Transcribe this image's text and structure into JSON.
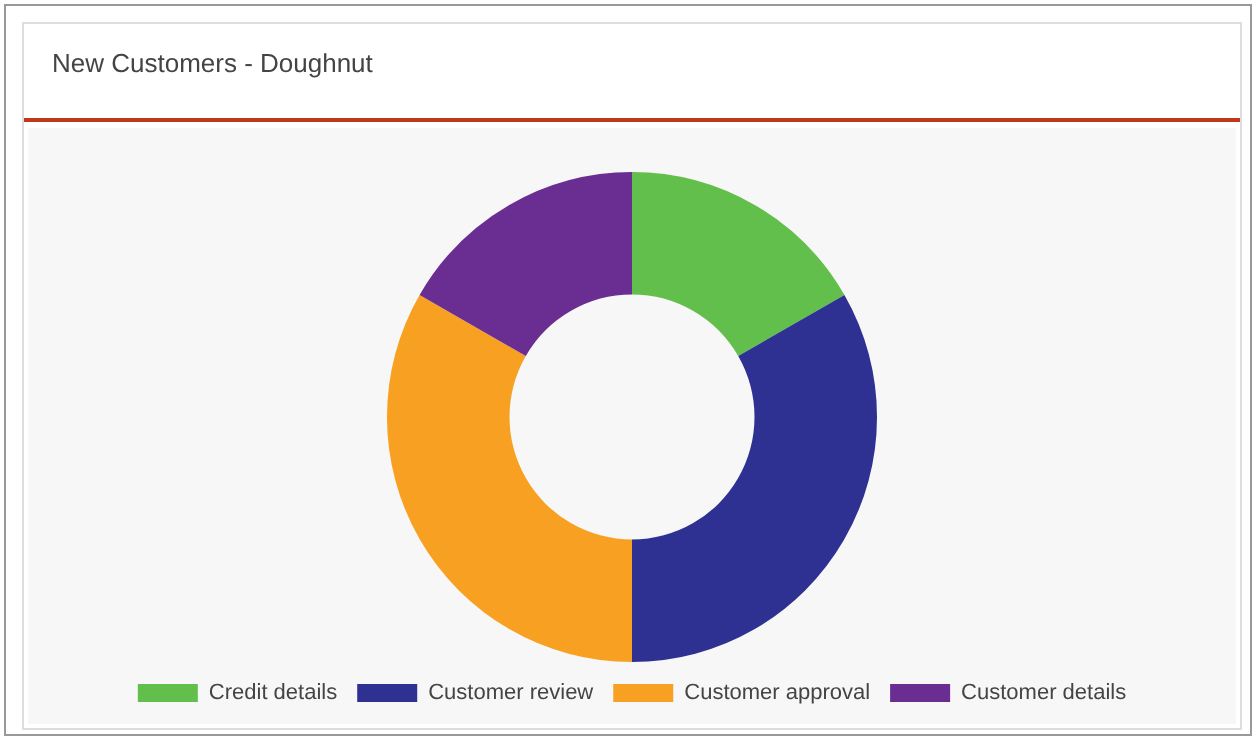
{
  "chart_data": {
    "type": "donut",
    "title": "New Customers - Doughnut",
    "categories": [
      "Credit details",
      "Customer review",
      "Customer approval",
      "Customer details"
    ],
    "values": [
      16.7,
      33.3,
      33.3,
      16.7
    ],
    "colors": [
      "#62bf4b",
      "#2e3192",
      "#f7a021",
      "#6a2d91"
    ],
    "legend": "bottom"
  }
}
